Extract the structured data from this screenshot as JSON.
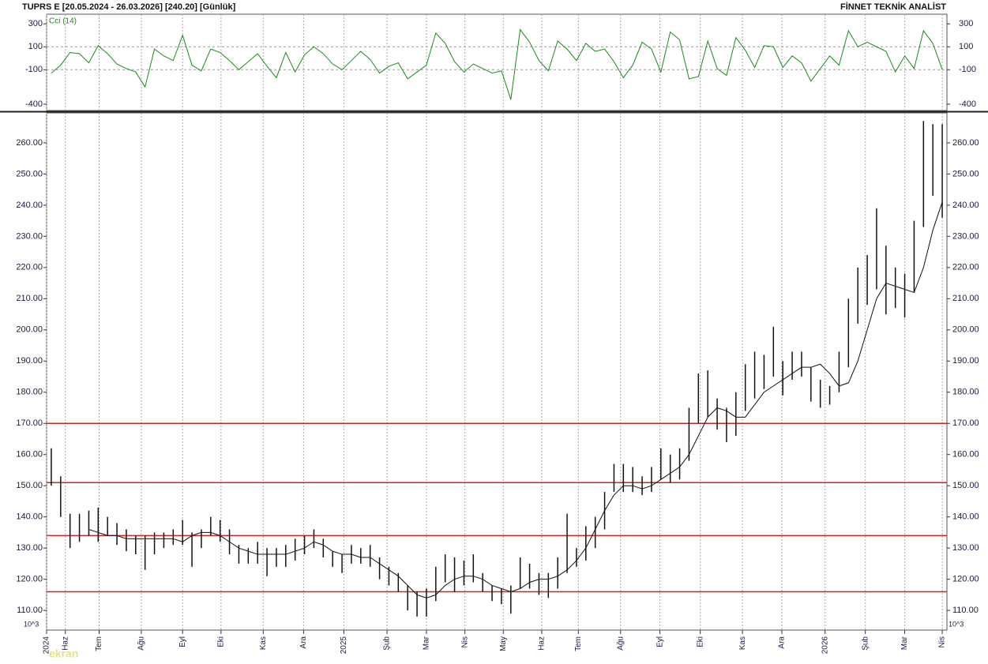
{
  "header": {
    "title": "TUPRS E  [20.05.2024 - 26.03.2026]  [240.20]  [Günlük]",
    "brand": "FİNNET TEKNİK ANALİST",
    "watermark": "ekran"
  },
  "chart_data": [
    {
      "type": "line",
      "label": "Cci (14)",
      "color": "#1a8a1a",
      "ylim": [
        -456,
        384
      ],
      "yticks": [
        300,
        100,
        -100,
        -400
      ],
      "gridlines": [
        100,
        -100
      ],
      "values": [
        -130,
        -60,
        50,
        40,
        -40,
        110,
        40,
        -50,
        -90,
        -120,
        -250,
        80,
        20,
        -20,
        200,
        -60,
        -110,
        80,
        50,
        -20,
        -100,
        -30,
        40,
        -70,
        -170,
        50,
        -120,
        30,
        100,
        40,
        -50,
        -100,
        -20,
        60,
        -10,
        -130,
        -70,
        -40,
        -180,
        -120,
        -60,
        220,
        130,
        -30,
        -120,
        -50,
        -90,
        -130,
        -110,
        -360,
        250,
        140,
        -20,
        -110,
        150,
        80,
        -20,
        130,
        60,
        80,
        -30,
        -170,
        -60,
        140,
        80,
        -120,
        230,
        160,
        -180,
        -160,
        150,
        -90,
        -150,
        180,
        70,
        -80,
        110,
        100,
        -80,
        20,
        -40,
        -200,
        -90,
        20,
        -60,
        240,
        100,
        140,
        100,
        60,
        -120,
        20,
        -90,
        240,
        130,
        -100
      ]
    },
    {
      "type": "hlc",
      "unit": "10^3",
      "bar_color": "#111111",
      "ma_color": "#111111",
      "level_color": "#d42020",
      "ylim": [
        103.7,
        269.6
      ],
      "yticks": [
        {
          "value": 110,
          "label": "110.00"
        },
        {
          "value": 120,
          "label": "120.00"
        },
        {
          "value": 130,
          "label": "130.00"
        },
        {
          "value": 140,
          "label": "140.00"
        },
        {
          "value": 150,
          "label": "150.00"
        },
        {
          "value": 160,
          "label": "160.00"
        },
        {
          "value": 170,
          "label": "170.00"
        },
        {
          "value": 180,
          "label": "180.00"
        },
        {
          "value": 190,
          "label": "190.00"
        },
        {
          "value": 200,
          "label": "200.00"
        },
        {
          "value": 210,
          "label": "210.00"
        },
        {
          "value": 220,
          "label": "220.00"
        },
        {
          "value": 230,
          "label": "230.00"
        },
        {
          "value": 240,
          "label": "240.00"
        },
        {
          "value": 250,
          "label": "250.00"
        },
        {
          "value": 260,
          "label": "260.00"
        }
      ],
      "xlim": [
        0,
        96
      ],
      "xticks": [
        {
          "value": 0,
          "label": "2024"
        },
        {
          "value": 2.0,
          "label": "Haz"
        },
        {
          "value": 5.6,
          "label": "Tem"
        },
        {
          "value": 10.1,
          "label": "Ağu"
        },
        {
          "value": 14.5,
          "label": "Eyl"
        },
        {
          "value": 18.6,
          "label": "Eki"
        },
        {
          "value": 23.1,
          "label": "Kas"
        },
        {
          "value": 27.4,
          "label": "Ara"
        },
        {
          "value": 31.7,
          "label": "2025"
        },
        {
          "value": 36.3,
          "label": "Şub"
        },
        {
          "value": 40.5,
          "label": "Mar"
        },
        {
          "value": 44.6,
          "label": "Nis"
        },
        {
          "value": 48.7,
          "label": "May"
        },
        {
          "value": 52.8,
          "label": "Haz"
        },
        {
          "value": 56.7,
          "label": "Tem"
        },
        {
          "value": 61.2,
          "label": "Ağu"
        },
        {
          "value": 65.4,
          "label": "Eyl"
        },
        {
          "value": 69.7,
          "label": "Eki"
        },
        {
          "value": 74.2,
          "label": "Kas"
        },
        {
          "value": 78.4,
          "label": "Ara"
        },
        {
          "value": 83.0,
          "label": "2026"
        },
        {
          "value": 87.3,
          "label": "Şub"
        },
        {
          "value": 91.5,
          "label": "Mar"
        },
        {
          "value": 95.5,
          "label": "Nis"
        }
      ],
      "levels": [
        170,
        151,
        134,
        116
      ],
      "high": [
        162,
        153,
        141,
        141,
        142,
        143,
        140,
        138,
        136,
        134,
        134,
        135,
        135,
        136,
        139,
        135,
        136,
        140,
        139,
        136,
        131,
        130,
        132,
        130,
        130,
        131,
        133,
        134,
        136,
        133,
        129,
        128,
        131,
        130,
        131,
        127,
        124,
        122,
        118,
        116,
        117,
        124,
        128,
        127,
        126,
        128,
        122,
        118,
        117,
        118,
        127,
        125,
        122,
        122,
        127,
        141,
        130,
        137,
        140,
        148,
        157,
        157,
        156,
        153,
        156,
        162,
        160,
        162,
        175,
        186,
        187,
        178,
        175,
        180,
        189,
        193,
        192,
        201,
        190,
        193,
        193,
        188,
        184,
        182,
        193,
        210,
        220,
        224,
        239,
        227,
        220,
        218,
        235,
        267,
        266,
        266
      ],
      "low": [
        150,
        140,
        130,
        132,
        134,
        132,
        134,
        131,
        129,
        128,
        123,
        128,
        130,
        131,
        131,
        124,
        130,
        134,
        132,
        128,
        125,
        125,
        125,
        121,
        124,
        124,
        126,
        128,
        130,
        127,
        124,
        122,
        125,
        125,
        124,
        120,
        118,
        116,
        110,
        108,
        108,
        113,
        119,
        116,
        118,
        119,
        116,
        113,
        112,
        109,
        117,
        117,
        115,
        114,
        117,
        122,
        124,
        126,
        130,
        136,
        148,
        148,
        148,
        147,
        148,
        152,
        151,
        152,
        158,
        170,
        172,
        168,
        164,
        166,
        174,
        178,
        181,
        185,
        179,
        184,
        185,
        177,
        175,
        176,
        180,
        188,
        202,
        208,
        213,
        205,
        207,
        204,
        212,
        233,
        243,
        236
      ],
      "ma": [
        null,
        null,
        null,
        null,
        136,
        135,
        134,
        134,
        133,
        133,
        133,
        133,
        133,
        133,
        132,
        134,
        135,
        135,
        134,
        132,
        130,
        129,
        128,
        128,
        128,
        128,
        129,
        130,
        132,
        131,
        129,
        128,
        128,
        127,
        127,
        125,
        123,
        121,
        118,
        115,
        114,
        115,
        118,
        120,
        121,
        121,
        120,
        118,
        117,
        116,
        117,
        119,
        120,
        120,
        121,
        123,
        126,
        130,
        136,
        142,
        147,
        150,
        150,
        149,
        150,
        152,
        154,
        156,
        160,
        166,
        172,
        175,
        174,
        172,
        172,
        176,
        180,
        182,
        184,
        186,
        188,
        188,
        189,
        186,
        182,
        183,
        190,
        200,
        210,
        215,
        214,
        213,
        212,
        220,
        232,
        241
      ]
    }
  ]
}
